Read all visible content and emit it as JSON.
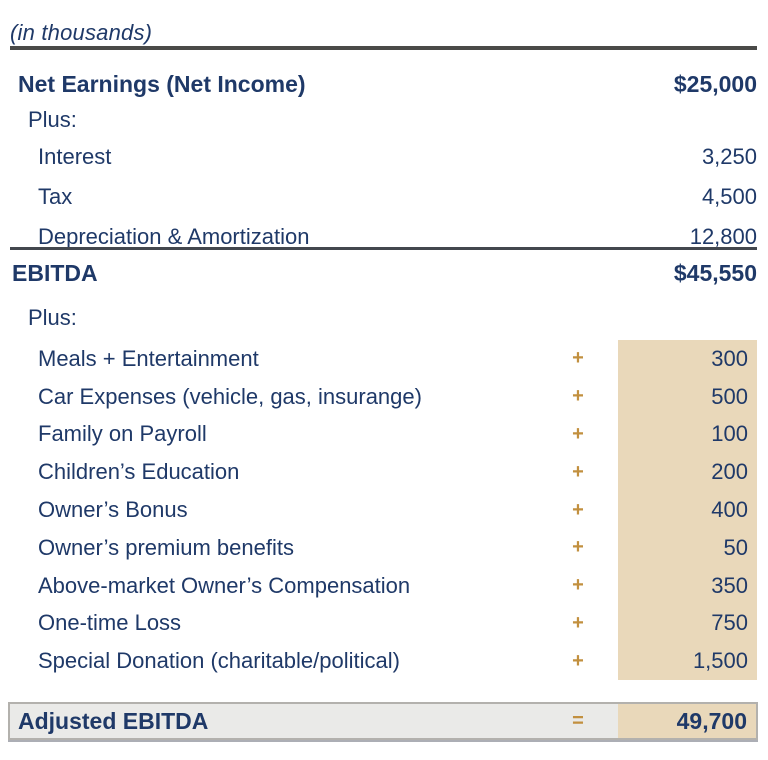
{
  "units_note": "(in thousands)",
  "colors": {
    "navy_text": "#1f3968",
    "gold_operator": "#c2903f",
    "beige_column": "#e9d8ba",
    "top_rule_gray": "#4a4a48",
    "mid_rule_gray": "#43474e",
    "total_row_bg": "#eaeae8",
    "total_row_border": "#b3b1ad"
  },
  "ebitda": {
    "net_earnings": {
      "label": "Net Earnings (Net Income)",
      "value": "$25,000"
    },
    "plus_label": "Plus:",
    "rows": [
      {
        "label": "Interest",
        "value": "3,250"
      },
      {
        "label": "Tax",
        "value": "4,500"
      },
      {
        "label": "Depreciation & Amortization",
        "value": "12,800"
      }
    ],
    "subtotal": {
      "label": "EBITDA",
      "value": "$45,550"
    }
  },
  "addbacks": {
    "plus_label": "Plus:",
    "rows": [
      {
        "label": "Meals + Entertainment",
        "op": "+",
        "value": "300"
      },
      {
        "label": "Car Expenses (vehicle, gas, insurange)",
        "op": "+",
        "value": "500"
      },
      {
        "label": "Family on Payroll",
        "op": "+",
        "value": "100"
      },
      {
        "label": "Children’s Education",
        "op": "+",
        "value": "200"
      },
      {
        "label": "Owner’s Bonus",
        "op": "+",
        "value": "400"
      },
      {
        "label": "Owner’s premium benefits",
        "op": "+",
        "value": "50"
      },
      {
        "label": "Above-market Owner’s Compensation",
        "op": "+",
        "value": "350"
      },
      {
        "label": "One-time Loss",
        "op": "+",
        "value": "750"
      },
      {
        "label": "Special Donation (charitable/political)",
        "op": "+",
        "value": "1,500"
      }
    ]
  },
  "total": {
    "label": "Adjusted EBITDA",
    "op": "=",
    "value": "49,700"
  }
}
